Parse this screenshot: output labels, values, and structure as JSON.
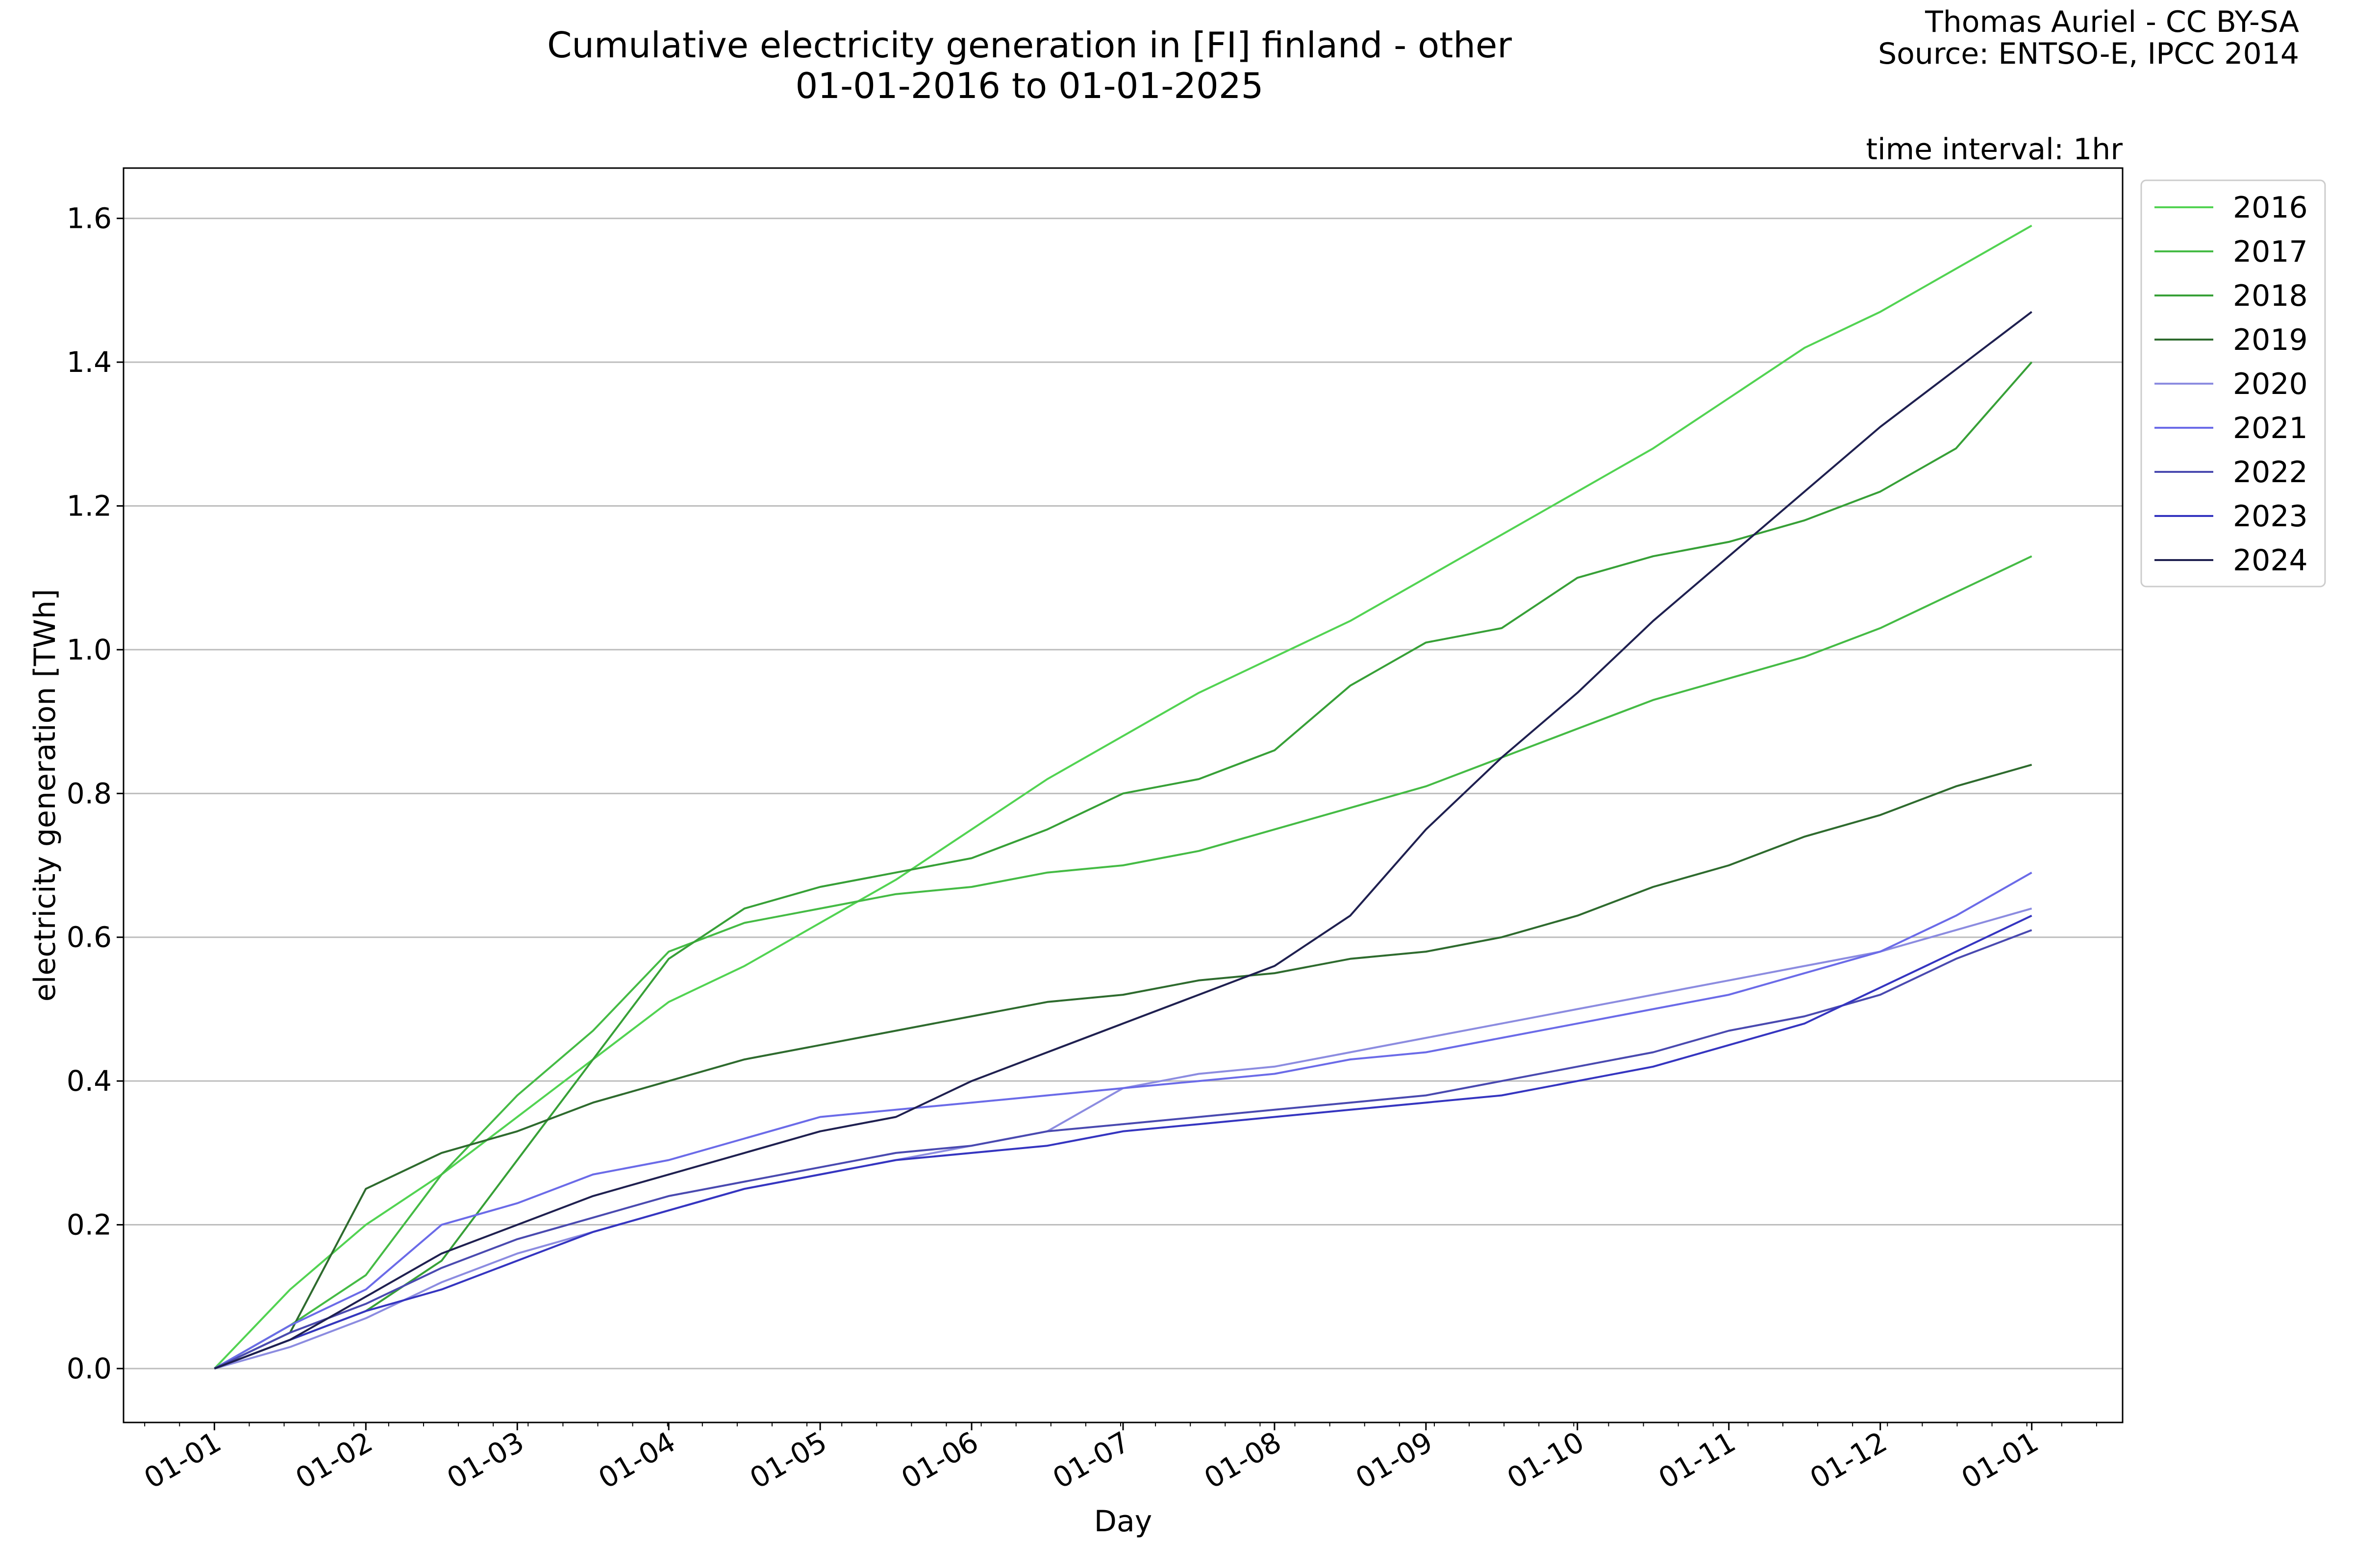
{
  "chart_data": {
    "type": "line",
    "title": "Cumulative electricity generation in [FI] finland - other",
    "subtitle": "01-01-2016 to 01-01-2025",
    "credit_line1": "Thomas Auriel - CC BY-SA",
    "credit_line2": "Source: ENTSO-E, IPCC 2014",
    "annotation": "time interval: 1hr",
    "xlabel": "Day",
    "ylabel": "electricity generation [TWh]",
    "x_ticks": [
      "01-01",
      "01-02",
      "01-03",
      "01-04",
      "01-05",
      "01-06",
      "01-07",
      "01-08",
      "01-09",
      "01-10",
      "01-11",
      "01-12",
      "01-01"
    ],
    "y_ticks": [
      "0.0",
      "0.2",
      "0.4",
      "0.6",
      "0.8",
      "1.0",
      "1.2",
      "1.4",
      "1.6"
    ],
    "xlim": [
      -0.6,
      12.6
    ],
    "ylim": [
      -0.075,
      1.67
    ],
    "grid": "horizontal",
    "legend_placement": "outside-top-right",
    "series": [
      {
        "name": "2016",
        "color": "#52d352",
        "x": [
          0,
          0.5,
          1,
          1.5,
          2,
          2.5,
          3,
          3.5,
          4,
          4.5,
          5,
          5.5,
          6,
          6.5,
          7,
          7.5,
          8,
          8.5,
          9,
          9.5,
          10,
          10.5,
          11,
          11.5,
          12
        ],
        "y": [
          0,
          0.11,
          0.2,
          0.27,
          0.35,
          0.43,
          0.51,
          0.56,
          0.62,
          0.68,
          0.75,
          0.82,
          0.88,
          0.94,
          0.99,
          1.04,
          1.1,
          1.16,
          1.22,
          1.28,
          1.35,
          1.42,
          1.47,
          1.53,
          1.59
        ]
      },
      {
        "name": "2017",
        "color": "#45bb45",
        "x": [
          0,
          0.5,
          1,
          1.5,
          2,
          2.5,
          3,
          3.5,
          4,
          4.5,
          5,
          5.5,
          6,
          6.5,
          7,
          7.5,
          8,
          8.5,
          9,
          9.5,
          10,
          10.5,
          11,
          11.5,
          12
        ],
        "y": [
          0,
          0.06,
          0.13,
          0.27,
          0.38,
          0.47,
          0.58,
          0.62,
          0.64,
          0.66,
          0.67,
          0.69,
          0.7,
          0.72,
          0.75,
          0.78,
          0.81,
          0.85,
          0.89,
          0.93,
          0.96,
          0.99,
          1.03,
          1.08,
          1.13
        ]
      },
      {
        "name": "2018",
        "color": "#37a037",
        "x": [
          0,
          0.5,
          1,
          1.5,
          2,
          2.5,
          3,
          3.5,
          4,
          4.5,
          5,
          5.5,
          6,
          6.5,
          7,
          7.5,
          8,
          8.5,
          9,
          9.5,
          10,
          10.5,
          11,
          11.5,
          12
        ],
        "y": [
          0,
          0.04,
          0.08,
          0.15,
          0.29,
          0.43,
          0.57,
          0.64,
          0.67,
          0.69,
          0.71,
          0.75,
          0.8,
          0.82,
          0.86,
          0.95,
          1.01,
          1.03,
          1.1,
          1.13,
          1.15,
          1.18,
          1.22,
          1.28,
          1.4
        ]
      },
      {
        "name": "2019",
        "color": "#2e6b2e",
        "x": [
          0,
          0.5,
          1,
          1.5,
          2,
          2.5,
          3,
          3.5,
          4,
          4.5,
          5,
          5.5,
          6,
          6.5,
          7,
          7.5,
          8,
          8.5,
          9,
          9.5,
          10,
          10.5,
          11,
          11.5,
          12
        ],
        "y": [
          0,
          0.05,
          0.25,
          0.3,
          0.33,
          0.37,
          0.4,
          0.43,
          0.45,
          0.47,
          0.49,
          0.51,
          0.52,
          0.54,
          0.55,
          0.57,
          0.58,
          0.6,
          0.63,
          0.67,
          0.7,
          0.74,
          0.77,
          0.81,
          0.84
        ]
      },
      {
        "name": "2020",
        "color": "#8c8ce0",
        "x": [
          0,
          0.5,
          1,
          1.5,
          2,
          2.5,
          3,
          3.5,
          4,
          4.5,
          5,
          5.5,
          6,
          6.5,
          7,
          7.5,
          8,
          8.5,
          9,
          9.5,
          10,
          10.5,
          11,
          11.5,
          12
        ],
        "y": [
          0,
          0.03,
          0.07,
          0.12,
          0.16,
          0.19,
          0.22,
          0.25,
          0.27,
          0.29,
          0.31,
          0.33,
          0.39,
          0.41,
          0.42,
          0.44,
          0.46,
          0.48,
          0.5,
          0.52,
          0.54,
          0.56,
          0.58,
          0.61,
          0.64
        ]
      },
      {
        "name": "2021",
        "color": "#6b6be8",
        "x": [
          0,
          0.5,
          1,
          1.5,
          2,
          2.5,
          3,
          3.5,
          4,
          4.5,
          5,
          5.5,
          6,
          6.5,
          7,
          7.5,
          8,
          8.5,
          9,
          9.5,
          10,
          10.5,
          11,
          11.5,
          12
        ],
        "y": [
          0,
          0.06,
          0.11,
          0.2,
          0.23,
          0.27,
          0.29,
          0.32,
          0.35,
          0.36,
          0.37,
          0.38,
          0.39,
          0.4,
          0.41,
          0.43,
          0.44,
          0.46,
          0.48,
          0.5,
          0.52,
          0.55,
          0.58,
          0.63,
          0.69
        ]
      },
      {
        "name": "2022",
        "color": "#4a4ab0",
        "x": [
          0,
          0.5,
          1,
          1.5,
          2,
          2.5,
          3,
          3.5,
          4,
          4.5,
          5,
          5.5,
          6,
          6.5,
          7,
          7.5,
          8,
          8.5,
          9,
          9.5,
          10,
          10.5,
          11,
          11.5,
          12
        ],
        "y": [
          0,
          0.05,
          0.09,
          0.14,
          0.18,
          0.21,
          0.24,
          0.26,
          0.28,
          0.3,
          0.31,
          0.33,
          0.34,
          0.35,
          0.36,
          0.37,
          0.38,
          0.4,
          0.42,
          0.44,
          0.47,
          0.49,
          0.52,
          0.57,
          0.61
        ]
      },
      {
        "name": "2023",
        "color": "#3535c0",
        "x": [
          0,
          0.5,
          1,
          1.5,
          2,
          2.5,
          3,
          3.5,
          4,
          4.5,
          5,
          5.5,
          6,
          6.5,
          7,
          7.5,
          8,
          8.5,
          9,
          9.5,
          10,
          10.5,
          11,
          11.5,
          12
        ],
        "y": [
          0,
          0.04,
          0.08,
          0.11,
          0.15,
          0.19,
          0.22,
          0.25,
          0.27,
          0.29,
          0.3,
          0.31,
          0.33,
          0.34,
          0.35,
          0.36,
          0.37,
          0.38,
          0.4,
          0.42,
          0.45,
          0.48,
          0.53,
          0.58,
          0.63
        ]
      },
      {
        "name": "2024",
        "color": "#1f2050",
        "x": [
          0,
          0.5,
          1,
          1.5,
          2,
          2.5,
          3,
          3.5,
          4,
          4.5,
          5,
          5.5,
          6,
          6.5,
          7,
          7.5,
          8,
          8.5,
          9,
          9.5,
          10,
          10.5,
          11,
          11.5,
          12
        ],
        "y": [
          0,
          0.04,
          0.1,
          0.16,
          0.2,
          0.24,
          0.27,
          0.3,
          0.33,
          0.35,
          0.4,
          0.44,
          0.48,
          0.52,
          0.56,
          0.63,
          0.75,
          0.85,
          0.94,
          1.04,
          1.13,
          1.22,
          1.31,
          1.39,
          1.47
        ]
      }
    ]
  }
}
